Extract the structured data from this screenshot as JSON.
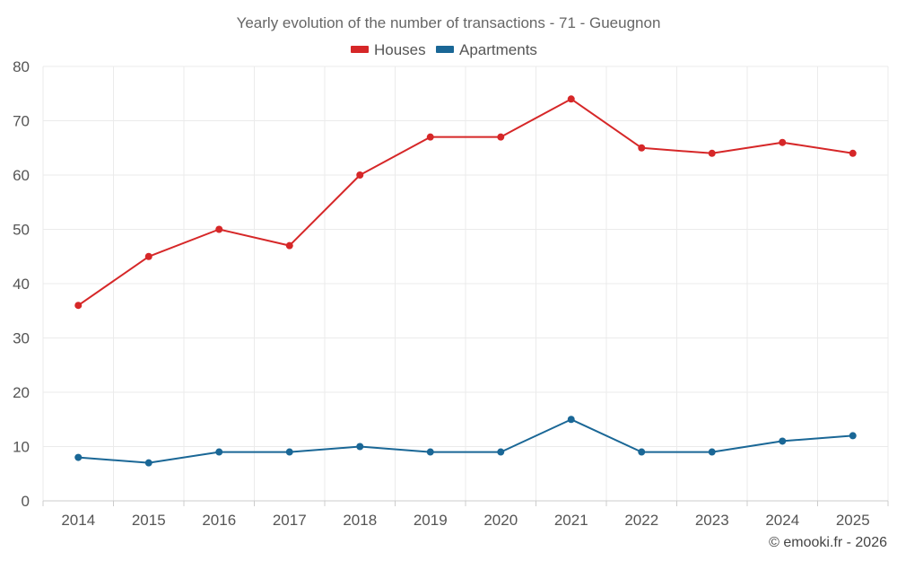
{
  "chart_data": {
    "type": "line",
    "title": "Yearly evolution of the number of transactions - 71 - Gueugnon",
    "xlabel": "",
    "ylabel": "",
    "categories": [
      "2014",
      "2015",
      "2016",
      "2017",
      "2018",
      "2019",
      "2020",
      "2021",
      "2022",
      "2023",
      "2024",
      "2025"
    ],
    "ylim": [
      0,
      80
    ],
    "yticks": [
      0,
      10,
      20,
      30,
      40,
      50,
      60,
      70,
      80
    ],
    "grid": true,
    "legend_position": "top-center",
    "series": [
      {
        "name": "Houses",
        "color": "#d62728",
        "values": [
          36,
          45,
          50,
          47,
          60,
          67,
          67,
          74,
          65,
          64,
          66,
          64
        ]
      },
      {
        "name": "Apartments",
        "color": "#1a6796",
        "values": [
          8,
          7,
          9,
          9,
          10,
          9,
          9,
          15,
          9,
          9,
          11,
          12
        ]
      }
    ]
  },
  "credit": "© emooki.fr - 2026"
}
